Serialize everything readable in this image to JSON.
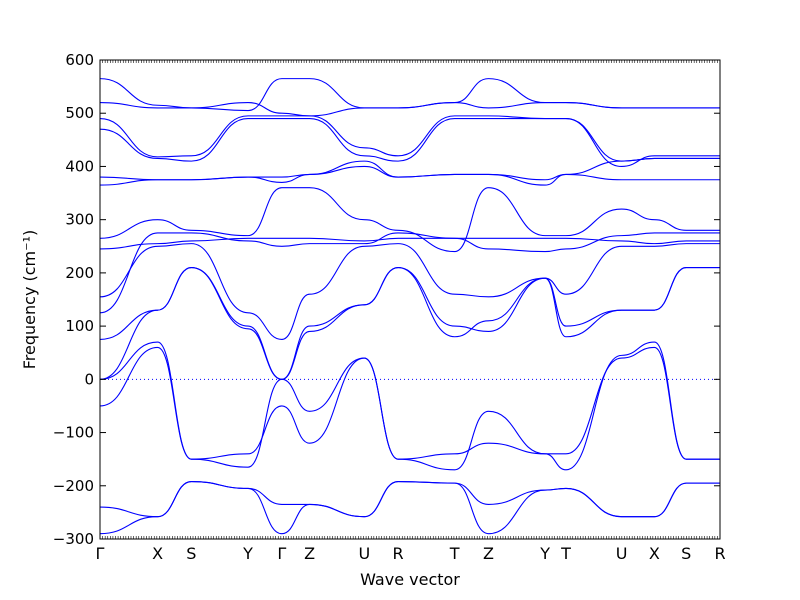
{
  "chart_data": {
    "type": "line",
    "xlabel": "Wave vector",
    "ylabel": "Frequency (cm⁻¹)",
    "ylim": [
      -300,
      600
    ],
    "yticks": [
      -300,
      -200,
      -100,
      0,
      100,
      200,
      300,
      400,
      500,
      600
    ],
    "grid": false,
    "zero_line": true,
    "path_labels": [
      "Γ",
      "X",
      "S",
      "Y",
      "Γ",
      "Z",
      "U",
      "R",
      "T",
      "Z",
      "Y",
      "T",
      "U",
      "X",
      "S",
      "R"
    ],
    "path_positions": [
      0,
      0.0929,
      0.1474,
      0.2388,
      0.2933,
      0.3381,
      0.4263,
      0.4808,
      0.5721,
      0.6266,
      0.7179,
      0.7516,
      0.8413,
      0.8942,
      0.9455,
      1.0
    ],
    "series_color": "#0000ff",
    "series": [
      {
        "x": [
          0,
          0.0929,
          0.1474,
          0.2388,
          0.2933,
          0.3381,
          0.4263,
          0.4808,
          0.5721,
          0.6266,
          0.7179,
          0.7516,
          0.8413,
          0.8942,
          0.9455,
          1.0
        ],
        "values": [
          -290,
          -258,
          -192,
          -205,
          -290,
          -235,
          -258,
          -192,
          -195,
          -290,
          -208,
          -205,
          -258,
          -258,
          -195,
          -195
        ]
      },
      {
        "x": [
          0,
          0.0929,
          0.1474,
          0.2388,
          0.2933,
          0.3381,
          0.4263,
          0.4808,
          0.5721,
          0.6266,
          0.7179,
          0.7516,
          0.8413,
          0.8942,
          0.9455,
          1.0
        ],
        "values": [
          -240,
          -258,
          -192,
          -205,
          -235,
          -235,
          -258,
          -192,
          -195,
          -235,
          -208,
          -205,
          -258,
          -258,
          -195,
          -195
        ]
      },
      {
        "x": [
          0,
          0.0929,
          0.1474,
          0.2388,
          0.2933,
          0.3381,
          0.4263,
          0.4808,
          0.5721,
          0.6266,
          0.7179,
          0.7516,
          0.8413,
          0.8942,
          0.9455,
          1.0
        ],
        "values": [
          -50,
          60,
          -150,
          -140,
          -50,
          -120,
          40,
          -150,
          -140,
          -120,
          -140,
          -140,
          40,
          60,
          -150,
          -150
        ]
      },
      {
        "x": [
          0,
          0.0929,
          0.1474,
          0.2388,
          0.2933,
          0.3381,
          0.4263,
          0.4808,
          0.5721,
          0.6266,
          0.7179,
          0.7516,
          0.8413,
          0.8942,
          0.9455,
          1.0
        ],
        "values": [
          0,
          70,
          -150,
          -165,
          0,
          -60,
          40,
          -150,
          -170,
          -60,
          -140,
          -170,
          45,
          70,
          -150,
          -150
        ]
      },
      {
        "x": [
          0,
          0.0929,
          0.1474,
          0.2388,
          0.2933,
          0.3381,
          0.4263,
          0.4808,
          0.5721,
          0.6266,
          0.7179,
          0.7516,
          0.8413,
          0.8942,
          0.9455,
          1.0
        ],
        "values": [
          0,
          130,
          210,
          100,
          0,
          90,
          140,
          210,
          100,
          90,
          190,
          100,
          130,
          130,
          210,
          210
        ]
      },
      {
        "x": [
          0,
          0.0929,
          0.1474,
          0.2388,
          0.2933,
          0.3381,
          0.4263,
          0.4808,
          0.5721,
          0.6266,
          0.7179,
          0.7516,
          0.8413,
          0.8942,
          0.9455,
          1.0
        ],
        "values": [
          75,
          130,
          210,
          95,
          0,
          100,
          140,
          210,
          80,
          110,
          190,
          80,
          130,
          130,
          210,
          210
        ]
      },
      {
        "x": [
          0,
          0.0929,
          0.1474,
          0.2388,
          0.2933,
          0.3381,
          0.4263,
          0.4808,
          0.5721,
          0.6266,
          0.7179,
          0.7516,
          0.8413,
          0.8942,
          0.9455,
          1.0
        ],
        "values": [
          155,
          250,
          255,
          125,
          75,
          160,
          250,
          255,
          160,
          155,
          190,
          160,
          250,
          250,
          255,
          255
        ]
      },
      {
        "x": [
          0,
          0.0929,
          0.1474,
          0.2388,
          0.2933,
          0.3381,
          0.4263,
          0.4808,
          0.5721,
          0.6266,
          0.7179,
          0.7516,
          0.8413,
          0.8942,
          0.9455,
          1.0
        ],
        "values": [
          125,
          275,
          275,
          260,
          250,
          255,
          255,
          275,
          265,
          245,
          240,
          245,
          270,
          275,
          275,
          275
        ]
      },
      {
        "x": [
          0,
          0.0929,
          0.1474,
          0.2388,
          0.2933,
          0.3381,
          0.4263,
          0.4808,
          0.5721,
          0.6266,
          0.7179,
          0.7516,
          0.8413,
          0.8942,
          0.9455,
          1.0
        ],
        "values": [
          245,
          255,
          260,
          265,
          265,
          265,
          260,
          265,
          265,
          265,
          265,
          265,
          260,
          255,
          260,
          260
        ]
      },
      {
        "x": [
          0,
          0.0929,
          0.1474,
          0.2388,
          0.2933,
          0.3381,
          0.4263,
          0.4808,
          0.5721,
          0.6266,
          0.7179,
          0.7516,
          0.8413,
          0.8942,
          0.9455,
          1.0
        ],
        "values": [
          265,
          300,
          280,
          270,
          360,
          360,
          300,
          280,
          240,
          360,
          270,
          270,
          320,
          300,
          280,
          280
        ]
      },
      {
        "x": [
          0,
          0.0929,
          0.1474,
          0.2388,
          0.2933,
          0.3381,
          0.4263,
          0.4808,
          0.5721,
          0.6266,
          0.7179,
          0.7516,
          0.8413,
          0.8942,
          0.9455,
          1.0
        ],
        "values": [
          365,
          375,
          375,
          380,
          380,
          385,
          400,
          380,
          385,
          385,
          375,
          385,
          375,
          375,
          375,
          375
        ]
      },
      {
        "x": [
          0,
          0.0929,
          0.1474,
          0.2388,
          0.2933,
          0.3381,
          0.4263,
          0.4808,
          0.5721,
          0.6266,
          0.7179,
          0.7516,
          0.8413,
          0.8942,
          0.9455,
          1.0
        ],
        "values": [
          380,
          375,
          375,
          380,
          370,
          385,
          410,
          380,
          385,
          385,
          365,
          385,
          410,
          415,
          415,
          415
        ]
      },
      {
        "x": [
          0,
          0.0929,
          0.1474,
          0.2388,
          0.2933,
          0.3381,
          0.4263,
          0.4808,
          0.5721,
          0.6266,
          0.7179,
          0.7516,
          0.8413,
          0.8942,
          0.9455,
          1.0
        ],
        "values": [
          470,
          415,
          410,
          490,
          490,
          490,
          420,
          410,
          490,
          490,
          490,
          490,
          400,
          420,
          420,
          420
        ]
      },
      {
        "x": [
          0,
          0.0929,
          0.1474,
          0.2388,
          0.2933,
          0.3381,
          0.4263,
          0.4808,
          0.5721,
          0.6266,
          0.7179,
          0.7516,
          0.8413,
          0.8942,
          0.9455,
          1.0
        ],
        "values": [
          490,
          418,
          420,
          495,
          495,
          495,
          435,
          420,
          495,
          495,
          490,
          490,
          410,
          415,
          415,
          415
        ]
      },
      {
        "x": [
          0,
          0.0929,
          0.1474,
          0.2388,
          0.2933,
          0.3381,
          0.4263,
          0.4808,
          0.5721,
          0.6266,
          0.7179,
          0.7516,
          0.8413,
          0.8942,
          0.9455,
          1.0
        ],
        "values": [
          520,
          510,
          510,
          520,
          500,
          495,
          510,
          510,
          520,
          510,
          520,
          520,
          510,
          510,
          510,
          510
        ]
      },
      {
        "x": [
          0,
          0.0929,
          0.1474,
          0.2388,
          0.2933,
          0.3381,
          0.4263,
          0.4808,
          0.5721,
          0.6266,
          0.7179,
          0.7516,
          0.8413,
          0.8942,
          0.9455,
          1.0
        ],
        "values": [
          565,
          515,
          510,
          505,
          565,
          565,
          510,
          510,
          520,
          565,
          520,
          520,
          510,
          510,
          510,
          510
        ]
      }
    ]
  }
}
